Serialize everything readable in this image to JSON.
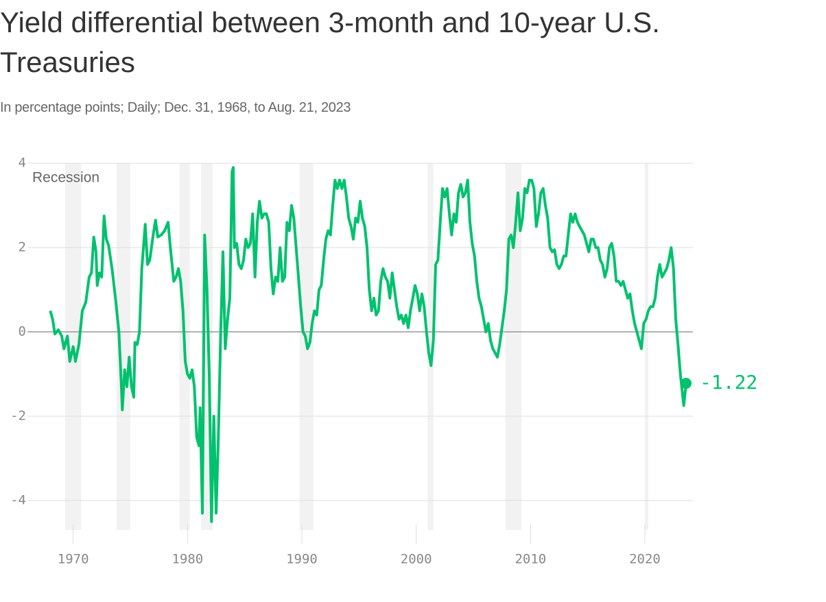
{
  "chart_data": {
    "type": "line",
    "title": "Yield differential between 3-month and 10-year U.S. Treasuries",
    "subtitle": "In percentage points; Daily; Dec. 31, 1968, to Aug. 21, 2023",
    "recession_label": "Recession",
    "recessions": [
      [
        1969.3,
        1970.7
      ],
      [
        1973.8,
        1975.0
      ],
      [
        1979.3,
        1980.2
      ],
      [
        1981.2,
        1982.2
      ],
      [
        1989.8,
        1991.0
      ],
      [
        2001.0,
        2001.5
      ],
      [
        2007.8,
        2009.2
      ],
      [
        2020.0,
        2020.3
      ]
    ],
    "recession_color": "#f2f2f2",
    "color": "#00c16e",
    "grid": true,
    "xlim": [
      1966,
      2024.2
    ],
    "xticks": [
      1970,
      1980,
      1990,
      2000,
      2010,
      2020
    ],
    "ylim": [
      -4.7,
      4.1
    ],
    "yticks": [
      -4,
      -2,
      0,
      2,
      4
    ],
    "x": [
      1968.0,
      1968.2,
      1968.4,
      1968.7,
      1969.0,
      1969.2,
      1969.5,
      1969.7,
      1970.0,
      1970.2,
      1970.5,
      1970.8,
      1971.1,
      1971.4,
      1971.6,
      1971.8,
      1972.0,
      1972.1,
      1972.3,
      1972.5,
      1972.7,
      1972.9,
      1973.1,
      1973.4,
      1973.7,
      1974.0,
      1974.2,
      1974.3,
      1974.5,
      1974.7,
      1974.9,
      1975.1,
      1975.3,
      1975.4,
      1975.6,
      1975.8,
      1976.0,
      1976.3,
      1976.5,
      1976.7,
      1977.0,
      1977.2,
      1977.4,
      1977.7,
      1978.0,
      1978.3,
      1978.5,
      1978.8,
      1979.0,
      1979.2,
      1979.4,
      1979.6,
      1979.8,
      1980.0,
      1980.2,
      1980.4,
      1980.6,
      1980.8,
      1981.0,
      1981.1,
      1981.3,
      1981.5,
      1981.7,
      1981.9,
      1982.1,
      1982.3,
      1982.5,
      1982.7,
      1982.9,
      1983.1,
      1983.3,
      1983.5,
      1983.7,
      1983.9,
      1984.0,
      1984.1,
      1984.3,
      1984.5,
      1984.7,
      1984.9,
      1985.1,
      1985.3,
      1985.5,
      1985.7,
      1985.9,
      1986.1,
      1986.3,
      1986.5,
      1986.7,
      1986.9,
      1987.1,
      1987.3,
      1987.5,
      1987.7,
      1987.9,
      1988.1,
      1988.3,
      1988.5,
      1988.7,
      1988.9,
      1989.1,
      1989.3,
      1989.5,
      1989.7,
      1989.9,
      1990.1,
      1990.3,
      1990.5,
      1990.7,
      1990.9,
      1991.1,
      1991.3,
      1991.5,
      1991.7,
      1991.9,
      1992.1,
      1992.3,
      1992.5,
      1992.7,
      1992.9,
      1993.1,
      1993.3,
      1993.5,
      1993.7,
      1993.9,
      1994.1,
      1994.3,
      1994.5,
      1994.7,
      1994.9,
      1995.1,
      1995.3,
      1995.5,
      1995.7,
      1995.9,
      1996.1,
      1996.3,
      1996.5,
      1996.7,
      1996.9,
      1997.1,
      1997.3,
      1997.5,
      1997.7,
      1997.9,
      1998.1,
      1998.3,
      1998.5,
      1998.7,
      1998.9,
      1999.1,
      1999.3,
      1999.5,
      1999.7,
      1999.9,
      2000.1,
      2000.3,
      2000.5,
      2000.7,
      2000.9,
      2001.1,
      2001.3,
      2001.5,
      2001.7,
      2001.9,
      2002.1,
      2002.3,
      2002.5,
      2002.7,
      2002.9,
      2003.1,
      2003.3,
      2003.5,
      2003.7,
      2003.9,
      2004.1,
      2004.3,
      2004.5,
      2004.7,
      2004.9,
      2005.1,
      2005.3,
      2005.5,
      2005.7,
      2005.9,
      2006.1,
      2006.3,
      2006.5,
      2006.7,
      2006.9,
      2007.1,
      2007.3,
      2007.5,
      2007.7,
      2007.9,
      2008.1,
      2008.3,
      2008.5,
      2008.7,
      2008.9,
      2009.1,
      2009.3,
      2009.5,
      2009.7,
      2009.9,
      2010.1,
      2010.3,
      2010.5,
      2010.7,
      2010.9,
      2011.1,
      2011.3,
      2011.5,
      2011.7,
      2011.9,
      2012.1,
      2012.3,
      2012.5,
      2012.7,
      2012.9,
      2013.1,
      2013.3,
      2013.5,
      2013.7,
      2013.9,
      2014.1,
      2014.3,
      2014.5,
      2014.7,
      2014.9,
      2015.1,
      2015.3,
      2015.5,
      2015.7,
      2015.9,
      2016.1,
      2016.3,
      2016.5,
      2016.7,
      2016.9,
      2017.1,
      2017.3,
      2017.5,
      2017.7,
      2017.9,
      2018.1,
      2018.3,
      2018.5,
      2018.7,
      2018.9,
      2019.1,
      2019.3,
      2019.5,
      2019.7,
      2019.9,
      2020.1,
      2020.3,
      2020.5,
      2020.7,
      2020.9,
      2021.1,
      2021.3,
      2021.5,
      2021.7,
      2021.9,
      2022.1,
      2022.3,
      2022.5,
      2022.7,
      2022.9,
      2023.1,
      2023.3,
      2023.4,
      2023.5,
      2023.6
    ],
    "values": [
      0.5,
      0.3,
      -0.05,
      0.05,
      -0.1,
      -0.4,
      -0.1,
      -0.7,
      -0.35,
      -0.7,
      -0.3,
      0.5,
      0.7,
      1.3,
      1.4,
      2.25,
      1.9,
      1.1,
      1.4,
      1.3,
      2.75,
      2.2,
      2.05,
      1.5,
      0.8,
      0.0,
      -1.2,
      -1.85,
      -0.9,
      -1.3,
      -0.6,
      -1.3,
      -1.55,
      -0.25,
      -0.3,
      0.0,
      1.5,
      2.55,
      1.6,
      1.7,
      2.3,
      2.65,
      2.25,
      2.3,
      2.4,
      2.6,
      2.0,
      1.2,
      1.3,
      1.5,
      1.2,
      0.5,
      -0.7,
      -1.0,
      -1.1,
      -0.9,
      -1.3,
      -2.5,
      -2.7,
      -1.8,
      -4.3,
      2.3,
      1.0,
      -1.0,
      -4.5,
      -2.0,
      -4.3,
      -2.5,
      0.0,
      1.9,
      -0.4,
      0.3,
      0.8,
      3.8,
      3.9,
      2.0,
      2.1,
      1.6,
      1.5,
      1.7,
      2.2,
      2.0,
      2.1,
      2.8,
      1.3,
      2.6,
      3.1,
      2.7,
      2.8,
      2.8,
      2.6,
      1.5,
      0.9,
      1.3,
      1.2,
      2.0,
      1.2,
      1.3,
      2.6,
      2.4,
      3.0,
      2.7,
      2.0,
      1.3,
      0.6,
      0.0,
      -0.1,
      -0.4,
      -0.25,
      0.2,
      0.5,
      0.4,
      1.0,
      1.1,
      1.7,
      2.2,
      2.4,
      2.3,
      3.0,
      3.6,
      3.4,
      3.6,
      3.4,
      3.6,
      3.2,
      2.7,
      2.5,
      2.2,
      2.7,
      2.6,
      3.1,
      2.7,
      2.5,
      2.0,
      1.0,
      0.5,
      0.8,
      0.4,
      0.5,
      1.2,
      1.5,
      1.3,
      1.2,
      0.8,
      1.4,
      1.0,
      0.6,
      0.3,
      0.4,
      0.2,
      0.4,
      0.1,
      0.5,
      0.8,
      1.1,
      0.9,
      0.5,
      0.9,
      0.6,
      0.0,
      -0.5,
      -0.8,
      -0.2,
      1.6,
      1.7,
      2.6,
      3.4,
      3.2,
      3.4,
      2.8,
      2.3,
      2.8,
      2.6,
      3.3,
      3.5,
      3.2,
      3.3,
      3.6,
      2.6,
      2.1,
      1.8,
      1.2,
      0.8,
      0.6,
      0.3,
      0.0,
      0.2,
      -0.2,
      -0.4,
      -0.5,
      -0.6,
      -0.3,
      0.1,
      0.5,
      1.0,
      2.2,
      2.3,
      2.0,
      2.6,
      3.3,
      2.4,
      2.7,
      3.4,
      3.3,
      3.6,
      3.6,
      3.4,
      2.5,
      2.8,
      3.3,
      3.4,
      3.0,
      2.7,
      2.0,
      1.9,
      1.95,
      1.6,
      1.5,
      1.6,
      1.8,
      1.8,
      2.3,
      2.8,
      2.6,
      2.8,
      2.6,
      2.5,
      2.4,
      2.3,
      2.1,
      1.9,
      2.2,
      2.2,
      2.0,
      2.0,
      1.7,
      1.6,
      1.3,
      1.5,
      2.0,
      2.1,
      1.8,
      1.2,
      1.2,
      1.1,
      1.2,
      1.0,
      0.8,
      0.9,
      0.5,
      0.2,
      0.0,
      -0.2,
      -0.4,
      0.2,
      0.3,
      0.5,
      0.6,
      0.6,
      0.8,
      1.3,
      1.6,
      1.3,
      1.4,
      1.5,
      1.7,
      2.0,
      1.5,
      0.3,
      -0.3,
      -1.0,
      -1.5,
      -1.75,
      -1.5,
      -1.22
    ]
  }
}
